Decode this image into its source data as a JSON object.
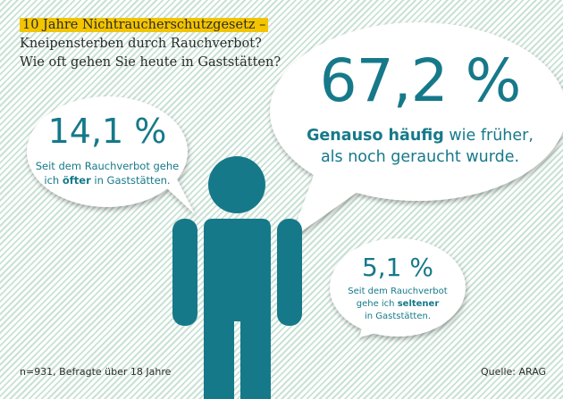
{
  "title": {
    "highlight": "10 Jahre Nichtraucherschutzgesetz –",
    "line2": "Kneipensterben durch Rauchverbot?",
    "line3": "Wie oft gehen Sie heute in Gaststätten?"
  },
  "results": [
    {
      "percent": "67,2 %",
      "bold": "Genauso häufig",
      "rest1": " wie früher,",
      "line2": "als noch geraucht wurde."
    },
    {
      "percent": "14,1 %",
      "line1": "Seit dem Rauchverbot gehe",
      "pre": "ich ",
      "bold": "öfter",
      "post": " in Gaststätten."
    },
    {
      "percent": "5,1 %",
      "line1": "Seit dem Rauchverbot",
      "pre": "gehe ich ",
      "bold": "seltener",
      "line3": "in Gaststätten."
    }
  ],
  "footer": {
    "sample": "n=931, Befragte über 18 Jahre",
    "source": "Quelle: ARAG"
  },
  "colors": {
    "teal": "#16798a",
    "highlight": "#f3c400",
    "stripes": "#c8e2d4"
  },
  "icons": [
    "person-icon",
    "speech-bubble-icon"
  ]
}
